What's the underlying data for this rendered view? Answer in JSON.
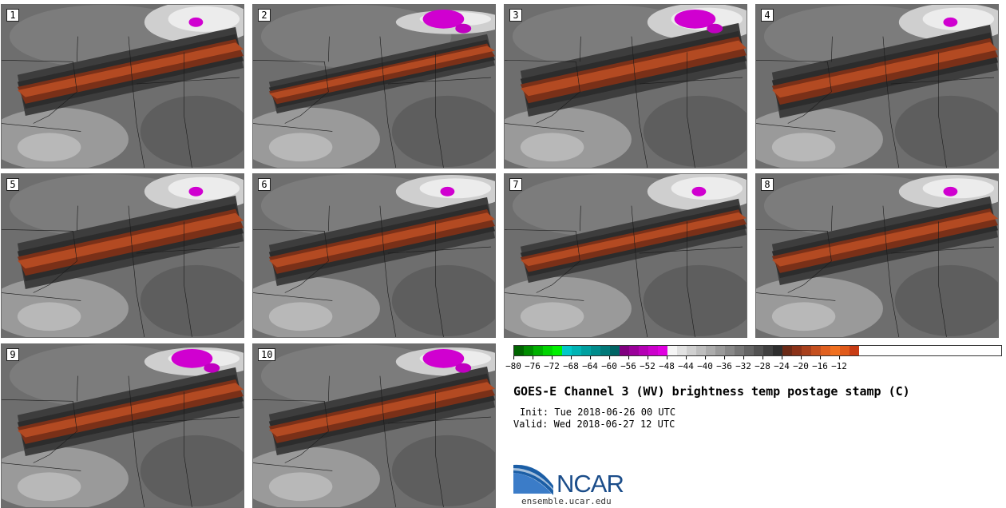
{
  "panels": [
    {
      "label": "1",
      "band_thickness": 0.9,
      "band_tilt": 0,
      "north_magenta": 1,
      "cloud_level": 0.9
    },
    {
      "label": "2",
      "band_thickness": 0.7,
      "band_tilt": 3,
      "north_magenta": 2,
      "cloud_level": 0.5
    },
    {
      "label": "3",
      "band_thickness": 1.0,
      "band_tilt": -2,
      "north_magenta": 2,
      "cloud_level": 0.8
    },
    {
      "label": "4",
      "band_thickness": 1.0,
      "band_tilt": 0,
      "north_magenta": 1,
      "cloud_level": 0.8
    },
    {
      "label": "5",
      "band_thickness": 1.0,
      "band_tilt": 2,
      "north_magenta": 1,
      "cloud_level": 0.8
    },
    {
      "label": "6",
      "band_thickness": 0.9,
      "band_tilt": 1,
      "north_magenta": 1,
      "cloud_level": 0.7
    },
    {
      "label": "7",
      "band_thickness": 0.8,
      "band_tilt": 0,
      "north_magenta": 1,
      "cloud_level": 0.8
    },
    {
      "label": "8",
      "band_thickness": 0.9,
      "band_tilt": 0,
      "north_magenta": 1,
      "cloud_level": 0.7
    },
    {
      "label": "9",
      "band_thickness": 0.9,
      "band_tilt": 1,
      "north_magenta": 2,
      "cloud_level": 0.6
    },
    {
      "label": "10",
      "band_thickness": 0.9,
      "band_tilt": 0,
      "north_magenta": 2,
      "cloud_level": 0.6
    }
  ],
  "colorbar": {
    "colors": [
      "#006400",
      "#008b00",
      "#00b000",
      "#00d400",
      "#00f000",
      "#00c8c8",
      "#00b4b4",
      "#00a0a0",
      "#008c8c",
      "#007878",
      "#006464",
      "#800080",
      "#9a009a",
      "#b400b4",
      "#cc00cc",
      "#e000e0",
      "#f5f5f5",
      "#e2e2e2",
      "#d0d0d0",
      "#bebebe",
      "#acacac",
      "#9a9a9a",
      "#888888",
      "#767676",
      "#646464",
      "#525252",
      "#404040",
      "#2e2e2e",
      "#6b2a17",
      "#8b3218",
      "#a8401c",
      "#c5501f",
      "#e06020",
      "#f07020",
      "#e05a1a",
      "#c83c14"
    ],
    "ticks": [
      "−80",
      "−76",
      "−72",
      "−68",
      "−64",
      "−60",
      "−56",
      "−52",
      "−48",
      "−44",
      "−40",
      "−36",
      "−32",
      "−28",
      "−24",
      "−20",
      "−16",
      "−12"
    ]
  },
  "title": "GOES-E Channel 3 (WV) brightness temp postage stamp (C)",
  "init": "Init: Tue 2018-06-26 00 UTC",
  "valid": "Valid: Wed 2018-06-27 12 UTC",
  "logo": {
    "name": "NCAR",
    "url": "ensemble.ucar.edu"
  }
}
